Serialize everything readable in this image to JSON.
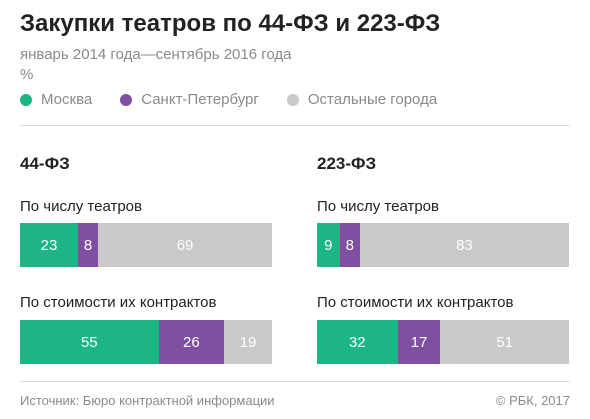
{
  "header": {
    "title": "Закупки театров по 44-ФЗ и 223-ФЗ",
    "subtitle": "январь 2014 года—сентябрь 2016 года",
    "unit": "%"
  },
  "legend": [
    {
      "label": "Москва",
      "color": "#1db586"
    },
    {
      "label": "Санкт-Петербург",
      "color": "#7f4fa2"
    },
    {
      "label": "Остальные города",
      "color": "#c9c9c9"
    }
  ],
  "chart_data": [
    {
      "type": "bar",
      "stacked": true,
      "orientation": "horizontal",
      "title": "44-ФЗ",
      "unit": "%",
      "categories": [
        "По числу театров",
        "По стоимости их контрактов"
      ],
      "series": [
        {
          "name": "Москва",
          "values": [
            23,
            55
          ]
        },
        {
          "name": "Санкт-Петербург",
          "values": [
            8,
            26
          ]
        },
        {
          "name": "Остальные города",
          "values": [
            69,
            19
          ]
        }
      ]
    },
    {
      "type": "bar",
      "stacked": true,
      "orientation": "horizontal",
      "title": "223-ФЗ",
      "unit": "%",
      "categories": [
        "По числу театров",
        "По стоимости их контрактов"
      ],
      "series": [
        {
          "name": "Москва",
          "values": [
            9,
            32
          ]
        },
        {
          "name": "Санкт-Петербург",
          "values": [
            8,
            17
          ]
        },
        {
          "name": "Остальные города",
          "values": [
            83,
            51
          ]
        }
      ]
    }
  ],
  "footer": {
    "source": "Источник: Бюро контрактной информации",
    "copyright": "© РБК, 2017"
  }
}
